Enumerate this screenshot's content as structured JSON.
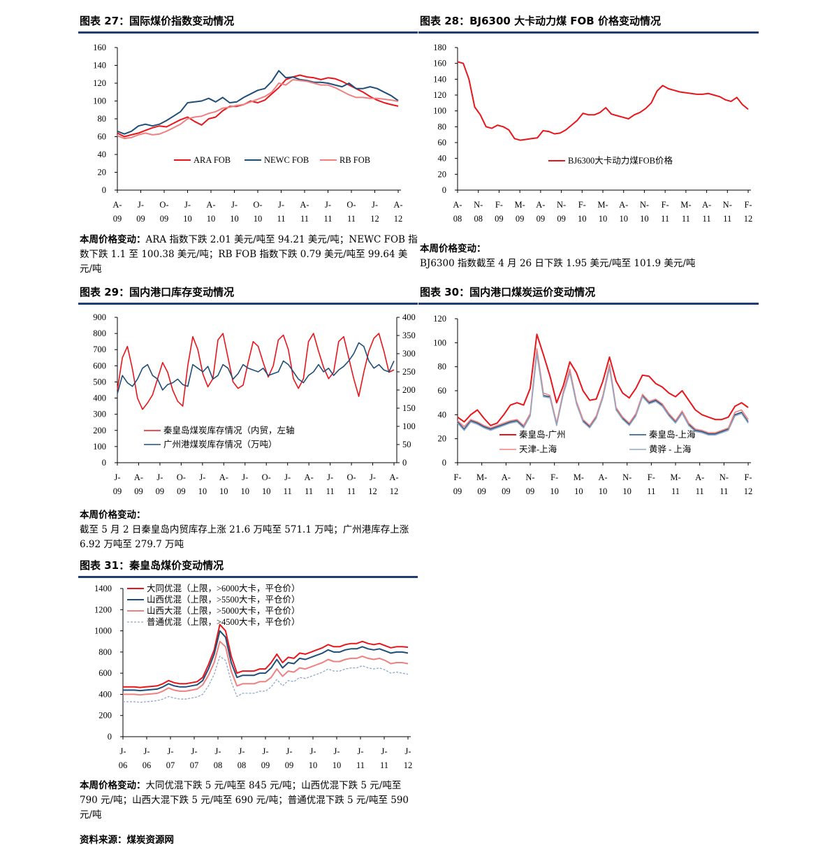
{
  "fig27": {
    "title": "图表 27：国际煤价指数变动情况",
    "note_label": "本周价格变动：",
    "note_text": "ARA 指数下跌 2.01 美元/吨至 94.21 美元/吨；NEWC FOB 指数下跌 1.1 至 100.38 美元/吨；RB FOB 指数下跌 0.79 美元/吨至 99.64 美元/吨"
  },
  "fig28": {
    "title": "图表 28：BJ6300 大卡动力煤 FOB 价格变动情况",
    "note_label": "本周价格变动：",
    "note_text": "BJ6300 指数截至 4 月 26 日下跌 1.95 美元/吨至 101.9 美元/吨"
  },
  "fig29": {
    "title": "图表 29：国内港口库存变动情况",
    "note_label": "本周价格变动：",
    "note_text": "截至 5 月 2 日秦皇岛内贸库存上涨 21.6 万吨至 571.1 万吨；广州港库存上涨 6.92 万吨至 279.7 万吨"
  },
  "fig30": {
    "title": "图表 30：国内港口煤炭运价变动情况"
  },
  "fig31": {
    "title": "图表 31：秦皇岛煤价变动情况",
    "note_label": "本周价格变动：",
    "note_text": "大同优混下跌 5 元/吨至 845 元/吨；山西优混下跌 5 元/吨至 790 元/吨；山西大混下跌 5 元/吨至 690 元/吨；普通优混下跌 5 元/吨至 590 元/吨"
  },
  "source": "资料来源：煤炭资源网",
  "chart_data": [
    {
      "id": "c27",
      "type": "line",
      "ylim": [
        0,
        160
      ],
      "yticks": [
        0,
        20,
        40,
        60,
        80,
        100,
        120,
        140,
        160
      ],
      "x_count": 41,
      "xtick_labels": [
        [
          "A-",
          "09"
        ],
        [
          "J-",
          "09"
        ],
        [
          "O-",
          "09"
        ],
        [
          "J-",
          "10"
        ],
        [
          "A-",
          "10"
        ],
        [
          "J-",
          "10"
        ],
        [
          "O-",
          "10"
        ],
        [
          "J-",
          "11"
        ],
        [
          "A-",
          "11"
        ],
        [
          "J-",
          "11"
        ],
        [
          "O-",
          "11"
        ],
        [
          "J-",
          "12"
        ],
        [
          "A-",
          "12"
        ]
      ],
      "legend": "center",
      "series": [
        {
          "name": "ARA FOB",
          "color": "#e8151b",
          "width": 2,
          "values": [
            64,
            60,
            62,
            64,
            67,
            70,
            72,
            71,
            75,
            79,
            82,
            77,
            73,
            80,
            82,
            89,
            94,
            94,
            96,
            100,
            98,
            101,
            108,
            115,
            124,
            127,
            129,
            127,
            126,
            124,
            126,
            125,
            122,
            118,
            114,
            110,
            105,
            101,
            98,
            96,
            94.2
          ]
        },
        {
          "name": "NEWC FOB",
          "color": "#1f4e79",
          "width": 2,
          "values": [
            66,
            63,
            66,
            72,
            74,
            72,
            74,
            78,
            83,
            88,
            98,
            99,
            100,
            103,
            99,
            104,
            98,
            99,
            104,
            108,
            112,
            114,
            122,
            134,
            126,
            127,
            124,
            123,
            121,
            121,
            120,
            118,
            116,
            120,
            114,
            114,
            116,
            114,
            110,
            106,
            100.4
          ]
        },
        {
          "name": "RB FOB",
          "color": "#f08080",
          "width": 2,
          "values": [
            61,
            58,
            59,
            62,
            64,
            62,
            63,
            66,
            70,
            74,
            80,
            82,
            83,
            86,
            88,
            92,
            93,
            95,
            96,
            99,
            102,
            105,
            110,
            120,
            118,
            124,
            123,
            122,
            120,
            118,
            118,
            115,
            111,
            107,
            104,
            104,
            103,
            103,
            102,
            101,
            99.6
          ]
        }
      ]
    },
    {
      "id": "c28",
      "type": "line",
      "ylim": [
        0,
        180
      ],
      "yticks": [
        0,
        20,
        40,
        60,
        80,
        100,
        120,
        140,
        160,
        180
      ],
      "x_count": 52,
      "xtick_labels": [
        [
          "A-",
          "08"
        ],
        [
          "N-",
          "08"
        ],
        [
          "F-",
          "09"
        ],
        [
          "M-",
          "09"
        ],
        [
          "A-",
          "09"
        ],
        [
          "N-",
          "09"
        ],
        [
          "F-",
          "10"
        ],
        [
          "M-",
          "10"
        ],
        [
          "A-",
          "10"
        ],
        [
          "N-",
          "10"
        ],
        [
          "F-",
          "11"
        ],
        [
          "M-",
          "11"
        ],
        [
          "A-",
          "11"
        ],
        [
          "N-",
          "11"
        ],
        [
          "F-",
          "12"
        ]
      ],
      "legend": "center",
      "series": [
        {
          "name": "BJ6300大卡动力煤FOB价格",
          "color": "#e8151b",
          "width": 2,
          "values": [
            162,
            160,
            140,
            105,
            95,
            80,
            78,
            82,
            80,
            76,
            65,
            63,
            64,
            65,
            66,
            75,
            74,
            71,
            72,
            76,
            82,
            88,
            97,
            95,
            95,
            98,
            104,
            96,
            94,
            92,
            90,
            95,
            98,
            103,
            110,
            125,
            132,
            128,
            126,
            124,
            123,
            122,
            121,
            121,
            122,
            120,
            118,
            114,
            112,
            117,
            108,
            102
          ]
        }
      ]
    },
    {
      "id": "c29",
      "type": "line",
      "ylim": [
        0,
        900
      ],
      "yticks": [
        0,
        100,
        200,
        300,
        400,
        500,
        600,
        700,
        800,
        900
      ],
      "y2lim": [
        0,
        400
      ],
      "y2ticks": [
        0,
        50,
        100,
        150,
        200,
        250,
        300,
        350,
        400
      ],
      "x_count": 56,
      "xtick_labels": [
        [
          "J-",
          "09"
        ],
        [
          "A-",
          "09"
        ],
        [
          "J-",
          "09"
        ],
        [
          "O-",
          "09"
        ],
        [
          "J-",
          "10"
        ],
        [
          "A-",
          "10"
        ],
        [
          "J-",
          "10"
        ],
        [
          "O-",
          "10"
        ],
        [
          "J-",
          "11"
        ],
        [
          "A-",
          "11"
        ],
        [
          "J-",
          "11"
        ],
        [
          "O-",
          "11"
        ],
        [
          "J-",
          "12"
        ],
        [
          "A-",
          "12"
        ]
      ],
      "legend": "center",
      "series": [
        {
          "name": "秦皇岛煤炭库存情况（内贸，左轴",
          "color": "#e8151b",
          "width": 1.6,
          "axis": "left",
          "values": [
            450,
            650,
            720,
            580,
            400,
            330,
            370,
            420,
            520,
            620,
            560,
            450,
            380,
            350,
            600,
            780,
            700,
            550,
            470,
            520,
            760,
            800,
            650,
            500,
            460,
            480,
            620,
            750,
            720,
            620,
            530,
            600,
            760,
            790,
            700,
            520,
            460,
            520,
            750,
            800,
            690,
            590,
            520,
            560,
            750,
            780,
            650,
            520,
            410,
            560,
            690,
            770,
            800,
            690,
            560,
            575
          ]
        },
        {
          "name": "广州港煤炭库存情况（万吨）",
          "color": "#1f4e79",
          "width": 1.6,
          "axis": "right",
          "values": [
            190,
            240,
            220,
            210,
            230,
            260,
            270,
            240,
            230,
            200,
            215,
            220,
            230,
            215,
            210,
            270,
            260,
            250,
            265,
            230,
            240,
            270,
            260,
            230,
            245,
            270,
            260,
            255,
            250,
            260,
            240,
            245,
            250,
            280,
            270,
            250,
            230,
            220,
            240,
            250,
            270,
            250,
            260,
            240,
            255,
            265,
            280,
            300,
            330,
            320,
            280,
            260,
            270,
            255,
            250,
            280
          ]
        }
      ]
    },
    {
      "id": "c30",
      "type": "line",
      "ylim": [
        0,
        120
      ],
      "yticks": [
        0,
        20,
        40,
        60,
        80,
        100,
        120
      ],
      "x_count": 45,
      "xtick_labels": [
        [
          "F-",
          "09"
        ],
        [
          "M-",
          "09"
        ],
        [
          "A-",
          "09"
        ],
        [
          "N-",
          "09"
        ],
        [
          "F-",
          "10"
        ],
        [
          "M-",
          "10"
        ],
        [
          "A-",
          "10"
        ],
        [
          "N-",
          "10"
        ],
        [
          "F-",
          "11"
        ],
        [
          "M-",
          "11"
        ],
        [
          "A-",
          "11"
        ],
        [
          "N-",
          "11"
        ],
        [
          "F-",
          "12"
        ]
      ],
      "legend": "lower",
      "series": [
        {
          "name": "秦皇岛-广州",
          "color": "#e8151b",
          "width": 2,
          "values": [
            38,
            34,
            40,
            44,
            37,
            31,
            33,
            40,
            48,
            50,
            48,
            62,
            107,
            90,
            72,
            50,
            64,
            84,
            75,
            60,
            52,
            53,
            68,
            88,
            68,
            58,
            54,
            62,
            73,
            72,
            66,
            63,
            58,
            55,
            60,
            52,
            44,
            40,
            38,
            36,
            36,
            38,
            47,
            50,
            46
          ]
        },
        {
          "name": "秦皇岛-上海",
          "color": "#1f4e79",
          "width": 1.6,
          "values": [
            34,
            28,
            35,
            33,
            30,
            28,
            30,
            32,
            34,
            35,
            30,
            40,
            93,
            56,
            55,
            32,
            58,
            76,
            50,
            35,
            30,
            38,
            55,
            80,
            45,
            37,
            32,
            40,
            56,
            50,
            52,
            48,
            40,
            34,
            42,
            32,
            27,
            26,
            24,
            24,
            26,
            28,
            40,
            42,
            34
          ]
        },
        {
          "name": "天津-上海",
          "color": "#f08080",
          "width": 1.6,
          "values": [
            35,
            30,
            36,
            34,
            31,
            29,
            31,
            33,
            35,
            36,
            31,
            41,
            95,
            58,
            56,
            33,
            59,
            78,
            51,
            36,
            31,
            39,
            56,
            82,
            46,
            38,
            33,
            41,
            57,
            51,
            53,
            49,
            41,
            35,
            43,
            33,
            28,
            27,
            25,
            25,
            27,
            29,
            42,
            44,
            36
          ]
        },
        {
          "name": "黄骅 - 上海",
          "color": "#8fa8c8",
          "width": 1.6,
          "values": [
            33,
            27,
            34,
            32,
            29,
            27,
            29,
            31,
            33,
            34,
            29,
            39,
            91,
            55,
            54,
            31,
            57,
            75,
            49,
            34,
            29,
            37,
            54,
            79,
            44,
            36,
            31,
            39,
            55,
            49,
            51,
            47,
            39,
            33,
            41,
            31,
            26,
            25,
            23,
            23,
            25,
            27,
            39,
            41,
            33
          ]
        }
      ]
    },
    {
      "id": "c31",
      "type": "line",
      "ylim": [
        0,
        1400
      ],
      "yticks": [
        0,
        200,
        400,
        600,
        800,
        1000,
        1200,
        1400
      ],
      "x_count": 51,
      "xtick_labels": [
        [
          "J-",
          "06"
        ],
        [
          "J-",
          "06"
        ],
        [
          "J-",
          "07"
        ],
        [
          "J-",
          "07"
        ],
        [
          "J-",
          "08"
        ],
        [
          "J-",
          "08"
        ],
        [
          "J-",
          "09"
        ],
        [
          "J-",
          "09"
        ],
        [
          "J-",
          "10"
        ],
        [
          "J-",
          "10"
        ],
        [
          "J-",
          "11"
        ],
        [
          "J-",
          "11"
        ],
        [
          "J-",
          "12"
        ]
      ],
      "legend": "top-left",
      "series": [
        {
          "name": "大同优混（上限，>6000大卡，平仓价）",
          "color": "#e8151b",
          "width": 2,
          "values": [
            470,
            470,
            470,
            465,
            470,
            475,
            480,
            500,
            530,
            510,
            500,
            500,
            510,
            520,
            560,
            680,
            820,
            1060,
            1000,
            760,
            600,
            620,
            620,
            620,
            640,
            640,
            700,
            780,
            700,
            750,
            740,
            790,
            780,
            800,
            820,
            840,
            870,
            850,
            850,
            870,
            880,
            880,
            900,
            880,
            870,
            880,
            860,
            840,
            850,
            850,
            845
          ]
        },
        {
          "name": "山西优混（上限，>5500大卡，平仓价）",
          "color": "#1f4e79",
          "width": 2,
          "values": [
            440,
            440,
            440,
            435,
            440,
            445,
            450,
            470,
            500,
            480,
            470,
            470,
            480,
            490,
            530,
            640,
            780,
            1000,
            940,
            700,
            560,
            580,
            580,
            580,
            600,
            600,
            650,
            730,
            650,
            700,
            690,
            740,
            730,
            750,
            770,
            790,
            820,
            800,
            800,
            820,
            830,
            830,
            850,
            830,
            820,
            830,
            810,
            790,
            800,
            800,
            790
          ]
        },
        {
          "name": "山西大混（上限，>5000大卡，平仓价）",
          "color": "#f08080",
          "width": 2,
          "values": [
            400,
            400,
            400,
            395,
            400,
            405,
            410,
            430,
            460,
            440,
            430,
            430,
            440,
            450,
            490,
            580,
            700,
            900,
            850,
            620,
            480,
            500,
            500,
            500,
            520,
            520,
            560,
            640,
            570,
            620,
            610,
            650,
            640,
            660,
            680,
            700,
            730,
            710,
            710,
            730,
            740,
            740,
            760,
            740,
            730,
            740,
            720,
            690,
            700,
            700,
            690
          ]
        },
        {
          "name": "普通优混（上限，>4500大卡，平仓价）",
          "color": "#8fa8c8",
          "width": 1.3,
          "dash": true,
          "values": [
            330,
            330,
            330,
            325,
            330,
            335,
            340,
            355,
            380,
            365,
            355,
            355,
            365,
            375,
            400,
            480,
            590,
            760,
            720,
            520,
            380,
            410,
            410,
            410,
            430,
            430,
            470,
            540,
            480,
            530,
            520,
            560,
            550,
            570,
            590,
            610,
            640,
            620,
            620,
            640,
            650,
            650,
            670,
            650,
            640,
            650,
            630,
            600,
            610,
            600,
            590
          ]
        }
      ]
    }
  ]
}
